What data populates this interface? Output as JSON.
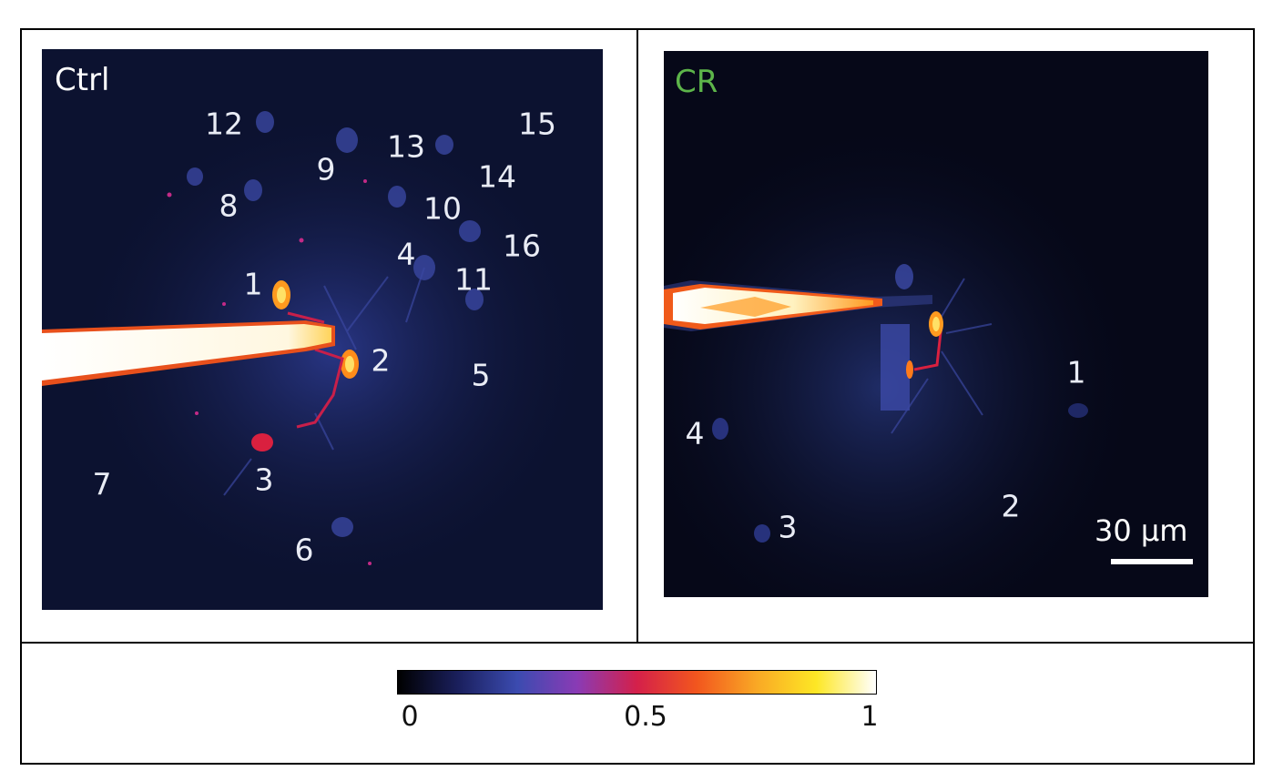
{
  "panels": {
    "ctrl": {
      "title": "Ctrl",
      "title_color": "#ffffff",
      "cell_labels": [
        "12",
        "9",
        "13",
        "15",
        "8",
        "10",
        "14",
        "16",
        "4",
        "1",
        "11",
        "2",
        "5",
        "7",
        "3",
        "6"
      ]
    },
    "cr": {
      "title": "CR",
      "title_color": "#5db54a",
      "cell_labels": [
        "1",
        "4",
        "2",
        "3"
      ],
      "scalebar": "30 µm"
    }
  },
  "colorbar": {
    "stops": [
      "#000000",
      "#1a1f5c",
      "#3b4bb0",
      "#8a3bb5",
      "#d4204a",
      "#f2561e",
      "#f9a825",
      "#fde725",
      "#ffffff"
    ],
    "ticks": [
      "0",
      "0.5",
      "1"
    ]
  }
}
